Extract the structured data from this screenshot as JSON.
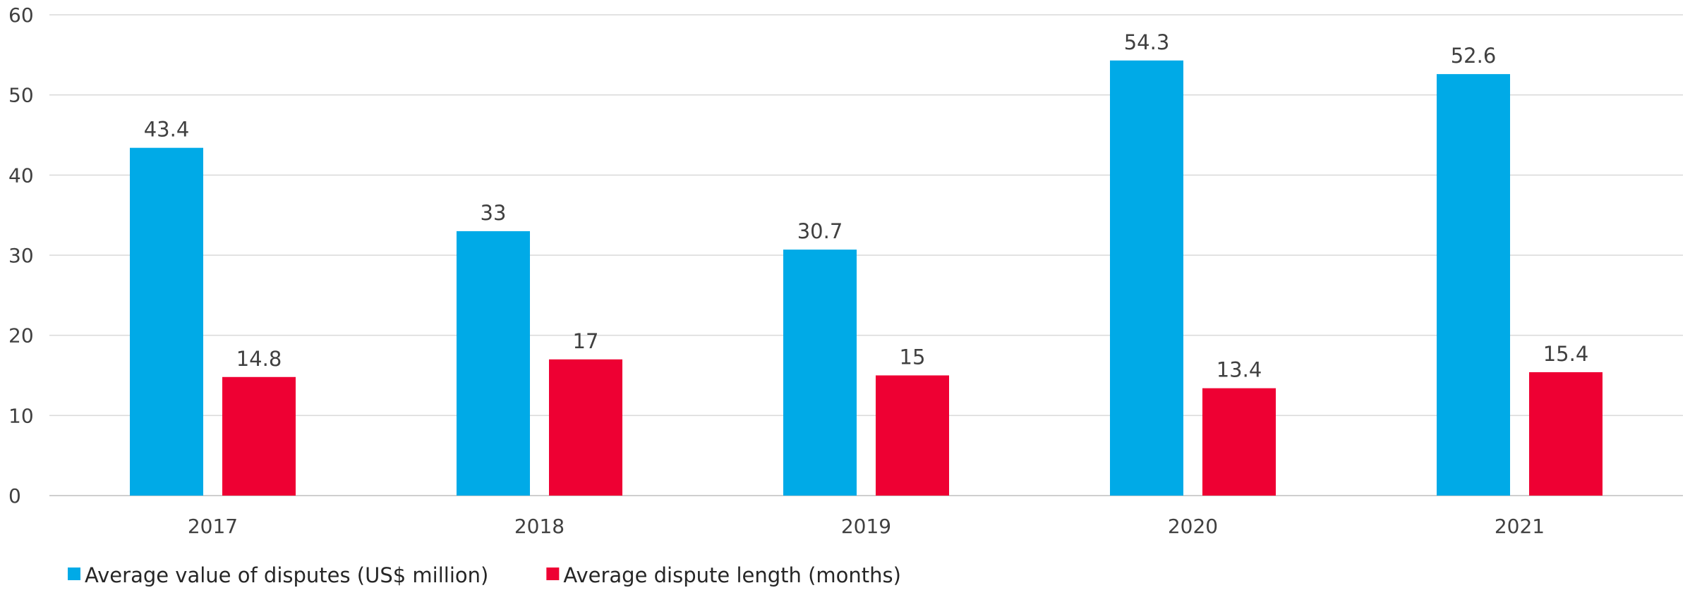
{
  "chart_data": {
    "type": "bar",
    "title": "",
    "xlabel": "",
    "ylabel": "",
    "categories": [
      "2017",
      "2018",
      "2019",
      "2020",
      "2021"
    ],
    "series": [
      {
        "name": "Average value of disputes (US$ million)",
        "color": "#00AAE7",
        "values": [
          43.4,
          33,
          30.7,
          54.3,
          52.6
        ]
      },
      {
        "name": "Average dispute length (months)",
        "color": "#EE0033",
        "values": [
          14.8,
          17,
          15,
          13.4,
          15.4
        ]
      }
    ],
    "ylim": [
      0,
      60
    ],
    "yticks": [
      0,
      10,
      20,
      30,
      40,
      50,
      60
    ],
    "grid": true,
    "data_labels": true,
    "legend_position": "bottom-left"
  }
}
